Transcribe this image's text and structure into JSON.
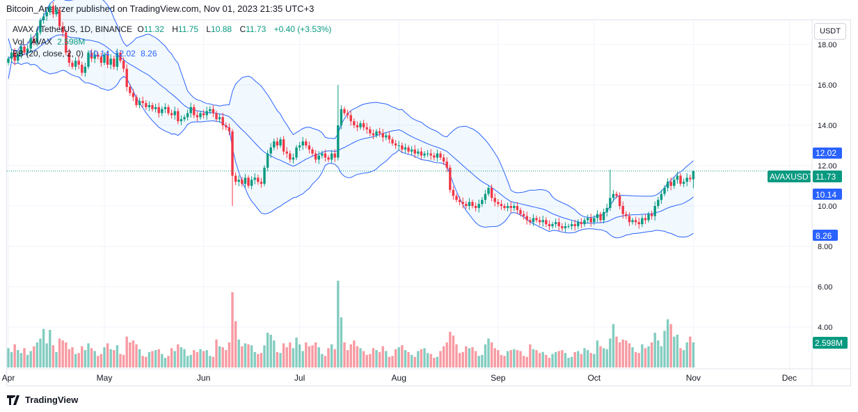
{
  "header": {
    "published": "Bitcoin_Analyzer published on TradingView.com, Nov 01, 2023 21:35 UTC+3"
  },
  "legend": {
    "symbol": "AVAX / TetherUS, 1D, BINANCE",
    "open_label": "O",
    "open": "11.32",
    "high_label": "H",
    "high": "11.75",
    "low_label": "L",
    "low": "10.88",
    "close_label": "C",
    "close": "11.73",
    "change": "+0.40 (+3.53%)",
    "vol_label": "Vol · AVAX",
    "vol_value": "2.598M",
    "bb_label": "BB (20, close, 2, 0)",
    "bb_basis": "10.14",
    "bb_upper": "12.02",
    "bb_lower": "8.26"
  },
  "price_axis": {
    "currency_button": "USDT",
    "symbol_tag": "AVAXUSDT",
    "last_price": "11.73",
    "bb_upper_tag": "12.02",
    "bb_basis_tag": "10.14",
    "bb_lower_tag": "8.26",
    "volume_tag": "2.598M"
  },
  "footer": {
    "brand": "TradingView"
  },
  "colors": {
    "up": "#089981",
    "down": "#f23645",
    "bands": "#2962ff",
    "band_fill": "#2196f3"
  },
  "chart_data": {
    "type": "candlestick",
    "title": "AVAX / TetherUS, 1D, BINANCE",
    "start_date": "2023-04-01",
    "interval": "1D",
    "ylim": [
      3,
      19.5
    ],
    "y_ticks": [
      "18.00",
      "16.00",
      "14.00",
      "12.00",
      "10.00",
      "8.00",
      "6.00",
      "4.00"
    ],
    "x_ticks": [
      "Apr",
      "May",
      "Jun",
      "Jul",
      "Aug",
      "Sep",
      "Oct",
      "Nov",
      "Dec"
    ],
    "x_tick_dates": [
      "2023-04-01",
      "2023-05-01",
      "2023-06-01",
      "2023-07-01",
      "2023-08-01",
      "2023-09-01",
      "2023-10-01",
      "2023-11-01",
      "2023-12-01"
    ],
    "grid": true,
    "close": [
      17.3,
      17.6,
      17.2,
      17.5,
      17.9,
      17.6,
      17.8,
      18.3,
      18.1,
      18.6,
      19.2,
      19.4,
      19.6,
      19.9,
      19.5,
      19.7,
      18.9,
      18.6,
      17.6,
      17.1,
      16.9,
      17.2,
      17.0,
      16.6,
      16.9,
      17.6,
      17.3,
      17.5,
      17.4,
      17.1,
      17.5,
      17.0,
      17.3,
      16.9,
      17.6,
      17.2,
      16.8,
      15.9,
      15.6,
      15.4,
      15.0,
      15.2,
      15.1,
      14.9,
      15.0,
      14.8,
      14.9,
      14.6,
      14.8,
      14.9,
      14.6,
      14.5,
      14.7,
      14.2,
      14.3,
      14.4,
      14.6,
      14.9,
      14.5,
      14.4,
      14.6,
      14.5,
      14.7,
      14.8,
      14.6,
      14.3,
      14.4,
      14.0,
      13.9,
      13.7,
      11.5,
      11.2,
      11.3,
      11.1,
      11.4,
      11.0,
      11.3,
      11.4,
      11.2,
      11.1,
      11.9,
      12.6,
      12.9,
      13.2,
      13.0,
      13.3,
      12.7,
      12.6,
      12.3,
      12.4,
      12.9,
      13.0,
      13.2,
      13.0,
      12.8,
      12.6,
      12.3,
      12.5,
      12.6,
      12.4,
      12.3,
      12.6,
      12.4,
      14.0,
      14.8,
      14.6,
      14.5,
      14.2,
      14.0,
      13.9,
      14.1,
      13.9,
      13.8,
      13.6,
      13.5,
      13.7,
      13.6,
      13.4,
      13.5,
      13.3,
      13.1,
      13.0,
      13.0,
      12.8,
      12.9,
      12.7,
      12.8,
      12.6,
      12.7,
      12.5,
      12.6,
      12.6,
      12.5,
      12.4,
      12.6,
      12.4,
      12.2,
      11.9,
      10.8,
      10.5,
      10.3,
      10.2,
      10.1,
      10.0,
      10.2,
      10.0,
      9.9,
      10.1,
      10.3,
      10.6,
      10.9,
      10.4,
      10.2,
      10.1,
      10.0,
      9.9,
      10.0,
      9.9,
      10.0,
      9.8,
      9.6,
      9.5,
      9.3,
      9.2,
      9.4,
      9.3,
      9.2,
      9.3,
      9.1,
      9.0,
      9.1,
      9.2,
      9.0,
      8.9,
      9.0,
      9.0,
      9.1,
      9.0,
      9.2,
      9.1,
      9.3,
      9.4,
      9.2,
      9.4,
      9.6,
      9.3,
      9.7,
      9.9,
      10.4,
      10.6,
      10.5,
      10.0,
      9.6,
      9.5,
      9.2,
      9.3,
      9.2,
      9.1,
      9.4,
      9.3,
      9.6,
      9.5,
      10.0,
      10.3,
      10.6,
      10.9,
      11.2,
      11.0,
      11.3,
      11.5,
      11.1,
      11.2,
      11.4,
      11.33,
      11.73
    ],
    "last_candle": {
      "open": 11.32,
      "high": 11.75,
      "low": 10.88,
      "close": 11.73
    },
    "extreme_wicks": [
      {
        "date": "2023-06-10",
        "low": 10.0
      },
      {
        "date": "2023-07-13",
        "high": 16.0
      },
      {
        "date": "2023-10-06",
        "high": 11.8
      }
    ],
    "volume_millions": [
      2.0,
      1.6,
      2.4,
      1.8,
      1.5,
      2.0,
      1.3,
      1.7,
      2.2,
      2.6,
      3.0,
      4.0,
      2.5,
      3.9,
      2.3,
      1.6,
      3.0,
      2.8,
      2.6,
      1.9,
      2.1,
      1.4,
      1.5,
      2.2,
      1.8,
      2.5,
      2.0,
      1.7,
      1.2,
      1.4,
      2.1,
      2.5,
      1.9,
      1.8,
      2.3,
      1.4,
      1.3,
      3.2,
      2.6,
      2.8,
      2.4,
      1.9,
      1.2,
      1.1,
      1.6,
      1.7,
      1.8,
      1.9,
      1.4,
      1.0,
      1.2,
      2.0,
      1.7,
      2.4,
      2.1,
      1.9,
      1.2,
      1.3,
      1.8,
      1.6,
      1.9,
      1.7,
      1.8,
      1.2,
      1.1,
      2.9,
      2.2,
      2.1,
      1.8,
      2.6,
      7.8,
      4.8,
      2.9,
      2.2,
      2.5,
      2.4,
      2.3,
      1.6,
      1.4,
      1.5,
      2.3,
      3.6,
      3.4,
      2.8,
      1.6,
      1.5,
      2.5,
      2.1,
      2.6,
      2.0,
      3.1,
      2.4,
      1.7,
      2.6,
      2.2,
      2.3,
      2.6,
      2.1,
      1.4,
      1.2,
      2.0,
      2.4,
      1.9,
      9.0,
      5.2,
      2.6,
      1.8,
      2.4,
      2.8,
      2.2,
      2.0,
      1.7,
      1.3,
      1.4,
      2.0,
      1.8,
      1.6,
      2.2,
      1.7,
      1.1,
      1.2,
      1.9,
      2.1,
      2.3,
      1.8,
      1.6,
      1.3,
      1.1,
      1.7,
      1.9,
      2.0,
      1.5,
      1.4,
      1.0,
      1.1,
      1.7,
      2.2,
      2.6,
      3.7,
      3.3,
      2.4,
      1.5,
      1.6,
      2.2,
      2.0,
      2.1,
      1.7,
      1.2,
      1.3,
      2.4,
      3.0,
      2.6,
      2.0,
      1.8,
      1.3,
      1.2,
      1.7,
      1.8,
      1.9,
      1.8,
      1.7,
      1.2,
      1.1,
      2.4,
      1.9,
      1.8,
      1.5,
      1.6,
      1.3,
      1.0,
      1.4,
      1.6,
      1.7,
      1.8,
      1.5,
      1.0,
      1.1,
      1.6,
      1.7,
      1.4,
      2.0,
      1.8,
      1.5,
      1.4,
      2.8,
      2.2,
      2.0,
      1.9,
      3.0,
      4.5,
      3.2,
      2.6,
      2.9,
      2.8,
      2.5,
      2.1,
      1.6,
      1.5,
      2.4,
      2.0,
      2.2,
      2.6,
      3.6,
      2.8,
      2.2,
      3.8,
      5.0,
      4.5,
      3.2,
      3.4,
      2.0,
      1.8,
      2.6,
      3.2,
      2.598
    ],
    "bollinger": {
      "length": 20,
      "stddev": 2,
      "source": "close",
      "last_basis": 10.14,
      "last_upper": 12.02,
      "last_lower": 8.26
    }
  }
}
